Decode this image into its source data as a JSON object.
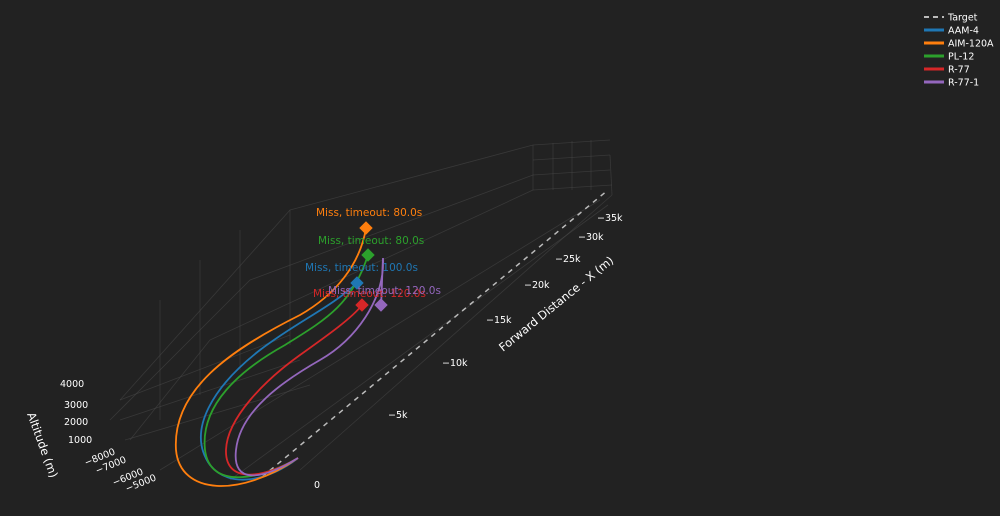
{
  "chart_data": {
    "type": "line",
    "mode": "3d",
    "axes": {
      "x": {
        "title": "Forward Distance - X (m)",
        "ticks": [
          "0",
          "−5k",
          "−10k",
          "−15k",
          "−20k",
          "−25k",
          "−30k",
          "−35k"
        ]
      },
      "y": {
        "title": "",
        "ticks": [
          "−8000",
          "−7000",
          "−6000",
          "−5000"
        ]
      },
      "z": {
        "title": "Altitude (m)",
        "ticks": [
          "1000",
          "2000",
          "3000",
          "4000"
        ]
      }
    },
    "grid": true,
    "legend_position": "top-right",
    "target": {
      "name": "Target",
      "color": "#bbbbbb",
      "dash": true
    },
    "series": [
      {
        "name": "AAM-4",
        "color": "#1f77b4",
        "annotation": "Miss, timeout: 100.0s"
      },
      {
        "name": "AIM-120A",
        "color": "#ff7f0e",
        "annotation": "Miss, timeout: 80.0s"
      },
      {
        "name": "PL-12",
        "color": "#2ca02c",
        "annotation": "Miss, timeout: 80.0s"
      },
      {
        "name": "R-77",
        "color": "#d62728",
        "annotation": "Miss, timeout: 120.0s"
      },
      {
        "name": "R-77-1",
        "color": "#9467bd",
        "annotation": "Miss, timeout: 120.0s"
      }
    ]
  }
}
